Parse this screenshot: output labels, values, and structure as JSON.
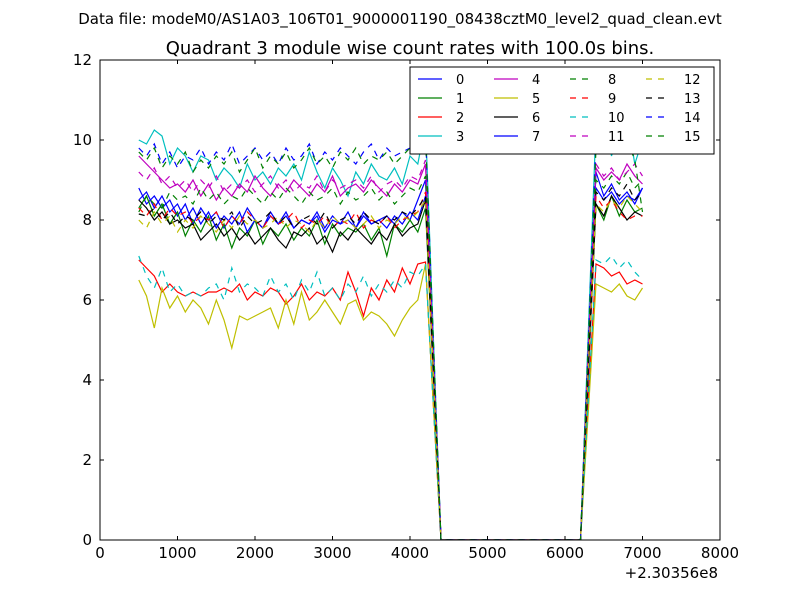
{
  "chart_data": {
    "type": "line",
    "suptitle": "Data file: modeM0/AS1A03_106T01_9000001190_08438cztM0_level2_quad_clean.evt",
    "title": "Quadrant 3 module wise count rates with 100.0s bins.",
    "xlabel": "",
    "ylabel": "",
    "xlim": [
      0,
      8000
    ],
    "ylim": [
      0,
      12
    ],
    "x_ticks": [
      0,
      1000,
      2000,
      3000,
      4000,
      5000,
      6000,
      7000,
      8000
    ],
    "y_ticks": [
      0,
      2,
      4,
      6,
      8,
      10,
      12
    ],
    "x_offset_label": "+2.30356e8",
    "legend_location": "top-right",
    "legend_columns": 4,
    "x": [
      500,
      600,
      700,
      800,
      900,
      1000,
      1100,
      1200,
      1300,
      1400,
      1500,
      1600,
      1700,
      1800,
      1900,
      2000,
      2100,
      2200,
      2300,
      2400,
      2500,
      2600,
      2700,
      2800,
      2900,
      3000,
      3100,
      3200,
      3300,
      3400,
      3500,
      3600,
      3700,
      3800,
      3900,
      4000,
      4100,
      4200,
      4300,
      4400,
      4500,
      4600,
      4700,
      4800,
      4900,
      5000,
      5100,
      5200,
      5300,
      5400,
      5500,
      5600,
      5700,
      5800,
      5900,
      6000,
      6100,
      6200,
      6300,
      6400,
      6500,
      6600,
      6700,
      6800,
      6900,
      7000
    ],
    "series": [
      {
        "name": "0",
        "color": "#0000ff",
        "dash": "solid",
        "values": [
          8.8,
          8.4,
          8.6,
          8.3,
          8.5,
          8.1,
          8.4,
          7.9,
          8.3,
          8.0,
          8.2,
          7.8,
          8.1,
          7.9,
          8.3,
          8.0,
          7.8,
          8.2,
          7.9,
          8.1,
          7.8,
          8.0,
          7.9,
          8.2,
          7.8,
          8.1,
          7.9,
          8.0,
          7.8,
          8.2,
          7.9,
          8.0,
          8.1,
          7.9,
          8.2,
          8.0,
          8.5,
          9.0,
          4.5,
          0,
          0,
          0,
          0,
          0,
          0,
          0,
          0,
          0,
          0,
          0,
          0,
          0,
          0,
          0,
          0,
          0,
          0,
          0,
          4.6,
          9.2,
          8.6,
          8.9,
          8.5,
          8.7,
          8.4,
          8.8
        ]
      },
      {
        "name": "1",
        "color": "#008000",
        "dash": "solid",
        "values": [
          8.3,
          8.6,
          8.1,
          8.4,
          7.9,
          8.2,
          7.6,
          8.0,
          7.7,
          8.1,
          7.5,
          7.9,
          7.3,
          7.8,
          7.6,
          8.0,
          7.4,
          7.8,
          7.6,
          7.9,
          7.5,
          7.8,
          7.6,
          8.0,
          7.4,
          7.9,
          7.6,
          7.8,
          7.7,
          7.9,
          7.5,
          7.8,
          7.1,
          7.9,
          7.7,
          8.0,
          7.7,
          8.3,
          4.1,
          0,
          0,
          0,
          0,
          0,
          0,
          0,
          0,
          0,
          0,
          0,
          0,
          0,
          0,
          0,
          0,
          0,
          0,
          0,
          4.2,
          8.4,
          8.0,
          8.6,
          8.1,
          8.5,
          8.2,
          8.3
        ]
      },
      {
        "name": "2",
        "color": "#ff0000",
        "dash": "solid",
        "values": [
          7.0,
          6.8,
          6.6,
          6.2,
          6.4,
          6.2,
          6.1,
          6.2,
          6.1,
          6.2,
          6.2,
          6.3,
          6.2,
          6.4,
          6.0,
          6.2,
          6.1,
          6.3,
          6.2,
          5.9,
          6.1,
          6.4,
          6.0,
          6.2,
          6.1,
          6.3,
          6.0,
          6.7,
          6.2,
          5.6,
          6.3,
          6.0,
          6.5,
          6.2,
          6.8,
          6.4,
          6.9,
          6.95,
          3.4,
          0,
          0,
          0,
          0,
          0,
          0,
          0,
          0,
          0,
          0,
          0,
          0,
          0,
          0,
          0,
          0,
          0,
          0,
          0,
          3.5,
          6.9,
          6.8,
          6.6,
          6.7,
          6.4,
          6.5,
          6.4
        ]
      },
      {
        "name": "3",
        "color": "#00bfbf",
        "dash": "solid",
        "values": [
          10.0,
          9.9,
          10.25,
          10.1,
          9.4,
          9.8,
          9.6,
          9.2,
          9.6,
          9.5,
          9.0,
          9.3,
          9.1,
          8.8,
          9.4,
          9.0,
          9.2,
          8.9,
          9.3,
          9.1,
          9.4,
          9.0,
          9.7,
          9.2,
          8.8,
          9.3,
          9.0,
          8.6,
          9.2,
          8.9,
          9.4,
          9.1,
          9.0,
          9.3,
          8.9,
          9.6,
          9.4,
          10.4,
          5.1,
          0,
          0,
          0,
          0,
          0,
          0,
          0,
          0,
          0,
          0,
          0,
          0,
          0,
          0,
          0,
          0,
          0,
          0,
          0,
          5.2,
          10.4,
          10.9,
          9.6,
          10.2,
          10.6,
          9.4,
          10.0
        ]
      },
      {
        "name": "4",
        "color": "#bf00bf",
        "dash": "solid",
        "values": [
          9.6,
          9.4,
          9.2,
          9.0,
          8.8,
          8.9,
          8.7,
          9.0,
          8.6,
          8.9,
          8.5,
          8.8,
          8.6,
          8.9,
          8.7,
          9.1,
          8.8,
          8.6,
          8.9,
          8.7,
          9.0,
          8.8,
          8.6,
          8.9,
          8.7,
          9.1,
          8.6,
          8.8,
          8.9,
          8.7,
          9.0,
          8.8,
          8.6,
          8.9,
          8.7,
          9.0,
          8.9,
          9.4,
          4.6,
          0,
          0,
          0,
          0,
          0,
          0,
          0,
          0,
          0,
          0,
          0,
          0,
          0,
          0,
          0,
          0,
          0,
          0,
          0,
          4.7,
          9.3,
          9.0,
          9.2,
          9.0,
          9.4,
          9.1,
          8.9
        ]
      },
      {
        "name": "5",
        "color": "#bfbf00",
        "dash": "solid",
        "values": [
          6.5,
          6.1,
          5.3,
          6.3,
          5.8,
          6.1,
          5.7,
          6.0,
          5.8,
          5.4,
          6.0,
          5.5,
          4.8,
          5.6,
          5.5,
          5.6,
          5.7,
          5.8,
          5.3,
          6.0,
          5.4,
          6.2,
          5.5,
          5.7,
          6.0,
          5.7,
          5.4,
          5.9,
          6.0,
          5.5,
          5.7,
          5.6,
          5.4,
          5.1,
          5.5,
          5.8,
          6.0,
          6.9,
          3.4,
          0,
          0,
          0,
          0,
          0,
          0,
          0,
          0,
          0,
          0,
          0,
          0,
          0,
          0,
          0,
          0,
          0,
          0,
          0,
          3.2,
          6.4,
          6.3,
          6.2,
          6.4,
          6.1,
          6.0,
          6.3
        ]
      },
      {
        "name": "6",
        "color": "#000000",
        "dash": "solid",
        "values": [
          8.5,
          8.3,
          8.0,
          8.2,
          7.9,
          8.0,
          7.8,
          7.9,
          7.5,
          7.7,
          7.9,
          7.6,
          7.8,
          7.5,
          7.7,
          7.4,
          7.6,
          7.8,
          7.5,
          7.3,
          7.7,
          7.6,
          7.8,
          7.4,
          7.6,
          7.2,
          7.7,
          7.5,
          7.8,
          7.6,
          7.4,
          7.7,
          7.5,
          7.9,
          7.6,
          7.8,
          7.9,
          8.5,
          4.2,
          0,
          0,
          0,
          0,
          0,
          0,
          0,
          0,
          0,
          0,
          0,
          0,
          0,
          0,
          0,
          0,
          0,
          0,
          0,
          4.1,
          8.4,
          8.1,
          8.6,
          8.3,
          8.0,
          8.2,
          8.1
        ]
      },
      {
        "name": "7",
        "color": "#0000ff",
        "dash": "solid",
        "values": [
          8.5,
          8.7,
          8.3,
          8.6,
          8.2,
          8.4,
          8.0,
          8.3,
          7.9,
          8.2,
          7.8,
          8.1,
          7.9,
          8.2,
          7.7,
          8.0,
          7.8,
          8.1,
          7.9,
          8.2,
          7.8,
          8.0,
          7.9,
          8.1,
          7.7,
          8.0,
          7.9,
          8.2,
          7.8,
          8.1,
          7.9,
          8.0,
          7.8,
          8.1,
          7.9,
          8.2,
          8.0,
          8.6,
          4.3,
          0,
          0,
          0,
          0,
          0,
          0,
          0,
          0,
          0,
          0,
          0,
          0,
          0,
          0,
          0,
          0,
          0,
          0,
          0,
          4.3,
          8.8,
          8.5,
          8.7,
          8.4,
          8.6,
          8.5,
          8.8
        ]
      },
      {
        "name": "8",
        "color": "#008000",
        "dash": "dashed",
        "values": [
          8.2,
          8.6,
          8.4,
          8.3,
          8.7,
          8.5,
          8.6,
          8.4,
          8.8,
          8.5,
          8.7,
          8.4,
          8.6,
          8.5,
          8.8,
          8.6,
          8.4,
          8.7,
          8.5,
          8.8,
          8.6,
          8.4,
          8.7,
          8.5,
          8.6,
          8.8,
          8.4,
          8.7,
          8.5,
          8.6,
          8.8,
          8.5,
          8.7,
          8.4,
          8.6,
          8.8,
          8.7,
          9.1,
          4.5,
          0,
          0,
          0,
          0,
          0,
          0,
          0,
          0,
          0,
          0,
          0,
          0,
          0,
          0,
          0,
          0,
          0,
          0,
          0,
          4.6,
          9.0,
          8.8,
          9.1,
          8.9,
          9.2,
          8.8,
          9.0
        ]
      },
      {
        "name": "9",
        "color": "#ff0000",
        "dash": "dashed",
        "values": [
          8.3,
          8.1,
          8.4,
          8.0,
          8.3,
          8.1,
          8.2,
          7.9,
          8.1,
          8.0,
          8.2,
          7.8,
          8.1,
          7.9,
          8.2,
          8.0,
          7.8,
          8.1,
          7.9,
          8.0,
          8.2,
          7.8,
          8.0,
          7.9,
          8.1,
          7.8,
          8.0,
          7.9,
          8.2,
          7.8,
          8.0,
          7.9,
          8.1,
          7.8,
          8.0,
          8.1,
          8.2,
          8.7,
          4.3,
          0,
          0,
          0,
          0,
          0,
          0,
          0,
          0,
          0,
          0,
          0,
          0,
          0,
          0,
          0,
          0,
          0,
          0,
          0,
          4.4,
          8.6,
          8.3,
          8.5,
          8.2,
          8.0,
          8.1,
          8.1
        ]
      },
      {
        "name": "10",
        "color": "#00bfbf",
        "dash": "dashed",
        "values": [
          7.1,
          6.6,
          6.3,
          6.8,
          6.2,
          6.4,
          6.1,
          6.2,
          6.1,
          6.3,
          6.4,
          6.0,
          6.8,
          6.2,
          6.4,
          6.3,
          6.1,
          6.6,
          6.2,
          6.4,
          6.0,
          6.5,
          6.2,
          6.7,
          6.1,
          6.3,
          6.0,
          6.4,
          6.2,
          6.6,
          6.1,
          6.4,
          6.2,
          6.5,
          6.3,
          6.7,
          6.6,
          6.9,
          3.4,
          0,
          0,
          0,
          0,
          0,
          0,
          0,
          0,
          0,
          0,
          0,
          0,
          0,
          0,
          0,
          0,
          0,
          0,
          0,
          3.5,
          7.0,
          6.9,
          7.1,
          6.8,
          7.0,
          6.7,
          6.5
        ]
      },
      {
        "name": "11",
        "color": "#bf00bf",
        "dash": "dashed",
        "values": [
          9.2,
          9.0,
          9.3,
          8.9,
          9.1,
          8.8,
          9.0,
          8.7,
          9.0,
          8.8,
          9.1,
          8.7,
          8.9,
          8.8,
          9.0,
          8.7,
          8.9,
          9.1,
          8.8,
          9.0,
          8.7,
          8.9,
          8.8,
          9.1,
          8.7,
          9.0,
          8.8,
          8.9,
          9.0,
          8.8,
          9.1,
          8.7,
          8.9,
          9.0,
          8.8,
          9.1,
          9.0,
          9.5,
          4.7,
          0,
          0,
          0,
          0,
          0,
          0,
          0,
          0,
          0,
          0,
          0,
          0,
          0,
          0,
          0,
          0,
          0,
          0,
          0,
          4.8,
          9.4,
          9.1,
          9.3,
          9.0,
          9.2,
          9.4,
          9.1
        ]
      },
      {
        "name": "12",
        "color": "#bfbf00",
        "dash": "dashed",
        "values": [
          8.0,
          7.8,
          8.2,
          7.9,
          8.1,
          7.7,
          8.0,
          7.8,
          8.1,
          7.9,
          7.7,
          8.0,
          7.8,
          8.1,
          7.9,
          8.0,
          7.8,
          7.9,
          8.1,
          7.8,
          8.0,
          7.9,
          7.7,
          8.0,
          7.8,
          8.1,
          7.9,
          8.0,
          7.8,
          7.9,
          8.1,
          7.8,
          8.0,
          7.9,
          8.1,
          8.0,
          8.2,
          8.5,
          4.2,
          0,
          0,
          0,
          0,
          0,
          0,
          0,
          0,
          0,
          0,
          0,
          0,
          0,
          0,
          0,
          0,
          0,
          0,
          0,
          4.3,
          8.4,
          8.2,
          8.5,
          8.3,
          8.6,
          8.4,
          8.2
        ]
      },
      {
        "name": "13",
        "color": "#000000",
        "dash": "dashed",
        "values": [
          8.15,
          8.1,
          8.3,
          8.0,
          8.2,
          7.9,
          8.1,
          8.0,
          8.2,
          7.9,
          8.1,
          8.0,
          8.2,
          7.8,
          8.1,
          7.9,
          8.0,
          8.2,
          7.9,
          8.1,
          7.8,
          8.0,
          8.1,
          7.9,
          8.2,
          7.8,
          8.0,
          8.1,
          7.9,
          8.2,
          8.0,
          7.9,
          8.1,
          8.0,
          8.2,
          8.1,
          8.3,
          8.6,
          4.3,
          0,
          0,
          0,
          0,
          0,
          0,
          0,
          0,
          0,
          0,
          0,
          0,
          0,
          0,
          0,
          0,
          0,
          0,
          0,
          4.4,
          8.7,
          8.5,
          8.8,
          8.6,
          8.9,
          8.5,
          8.7
        ]
      },
      {
        "name": "14",
        "color": "#0000ff",
        "dash": "dashed",
        "values": [
          9.8,
          9.6,
          9.9,
          9.4,
          9.7,
          9.3,
          9.6,
          9.5,
          9.8,
          9.4,
          9.7,
          9.5,
          9.9,
          9.4,
          9.6,
          9.8,
          9.5,
          9.7,
          9.4,
          9.8,
          9.5,
          9.6,
          9.9,
          9.4,
          9.7,
          9.5,
          9.8,
          9.6,
          9.4,
          9.7,
          9.9,
          9.5,
          9.8,
          9.6,
          9.7,
          9.8,
          9.9,
          10.2,
          5.0,
          0,
          0,
          0,
          0,
          0,
          0,
          0,
          0,
          0,
          0,
          0,
          0,
          0,
          0,
          0,
          0,
          0,
          0,
          0,
          5.0,
          10.0,
          9.8,
          10.1,
          9.9,
          10.2,
          9.8,
          10.0
        ]
      },
      {
        "name": "15",
        "color": "#008000",
        "dash": "dashed",
        "values": [
          9.7,
          9.5,
          9.8,
          9.3,
          9.6,
          9.4,
          9.7,
          9.2,
          9.5,
          9.3,
          9.6,
          9.4,
          9.7,
          9.2,
          9.5,
          9.8,
          9.3,
          9.6,
          9.4,
          9.7,
          9.3,
          9.5,
          9.8,
          9.4,
          9.6,
          9.3,
          9.7,
          9.5,
          9.8,
          9.4,
          9.6,
          9.5,
          9.7,
          9.4,
          9.6,
          9.8,
          9.7,
          10.1,
          5.0,
          0,
          0,
          0,
          0,
          0,
          0,
          0,
          0,
          0,
          0,
          0,
          0,
          0,
          0,
          0,
          0,
          0,
          0,
          0,
          4.9,
          9.8,
          9.6,
          9.9,
          9.7,
          10.0,
          9.5,
          8.2
        ]
      }
    ]
  }
}
